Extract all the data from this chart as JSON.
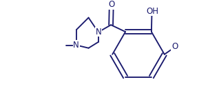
{
  "bg_color": "#ffffff",
  "bond_color": "#1a1a6e",
  "bond_lw": 1.35,
  "text_color": "#1a1a6e",
  "font_size": 8.5,
  "fig_width": 3.18,
  "fig_height": 1.32,
  "dpi": 100,
  "xlim": [
    -0.62,
    1.08
  ],
  "ylim": [
    -0.56,
    0.6
  ]
}
